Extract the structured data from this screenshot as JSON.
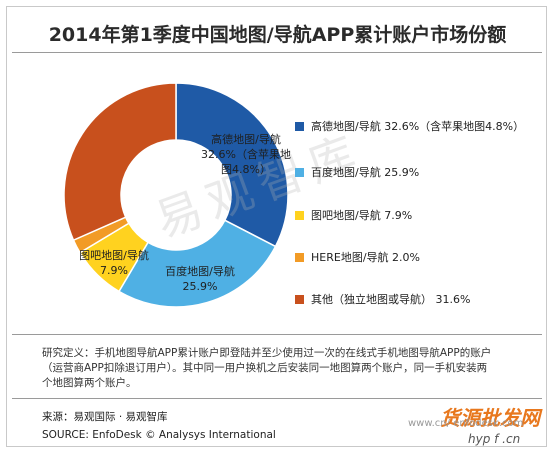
{
  "chart_data": {
    "type": "pie",
    "title": "2014年第1季度中国地图/导航APP累计账户市场份额",
    "categories": [
      "高德地图/导航",
      "百度地图/导航",
      "图吧地图/导航",
      "HERE地图/导航",
      "其他（独立地图或导航）"
    ],
    "values": [
      32.6,
      25.9,
      7.9,
      2.0,
      31.6
    ],
    "colors": [
      "#1f5aa6",
      "#4fb0e4",
      "#ffd21f",
      "#f29b26",
      "#c8501d"
    ],
    "segment_labels": [
      {
        "line1": "高德地图/导航",
        "line2": "32.6%（含苹果地",
        "line3": "图4.8%）"
      },
      {
        "line1": "百度地图/导航",
        "line2": "25.9%",
        "line3": ""
      },
      {
        "line1": "图吧地图/导航",
        "line2": "7.9%",
        "line3": ""
      }
    ],
    "legend": [
      "高德地图/导航 32.6%（含苹果地图4.8%）",
      "百度地图/导航 25.9%",
      "图吧地图/导航 7.9%",
      "HERE地图/导航 2.0%",
      "其他（独立地图或导航） 31.6%"
    ],
    "legend_position": "right"
  },
  "definition": {
    "line1": "研究定义：手机地图导航APP累计账户即登陆并至少使用过一次的在线式手机地图导航APP的账户",
    "line2": "（运营商APP扣除退订用户）。其中同一用户换机之后安装同一地图算两个账户，同一手机安装两",
    "line3": "个地图算两个账户。"
  },
  "source": {
    "cn": "来源：易观国际 · 易观智库",
    "en": "SOURCE: EnfoDesk © Analysys International"
  },
  "watermark": "易观智库",
  "stamp": {
    "brand": "货源批发网",
    "url1": "www.cn/  enfodesk.com",
    "url2": "hyp f  .cn"
  }
}
